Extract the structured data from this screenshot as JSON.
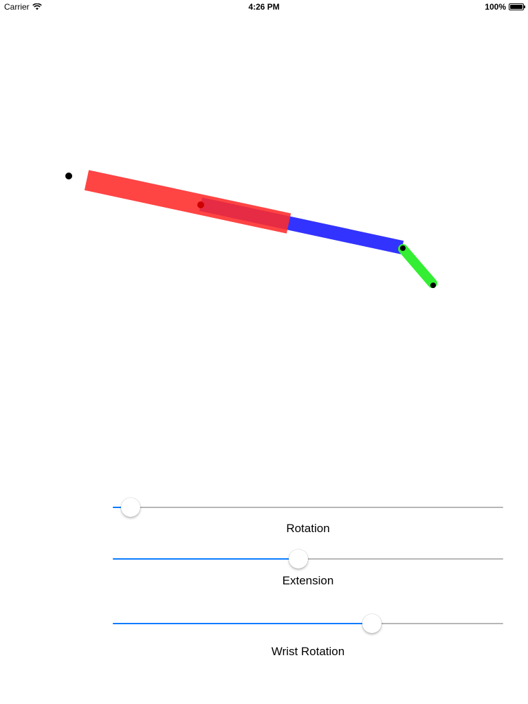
{
  "status_bar": {
    "carrier": "Carrier",
    "time": "4:26 PM",
    "battery": "100%",
    "battery_level": 1.0,
    "icons": [
      "wifi-icon",
      "battery-icon"
    ]
  },
  "arm": {
    "colors": {
      "base_segment": "#ff2a2a",
      "base_segment_opacity": 0.88,
      "extension_segment": "#3333ff",
      "wrist_segment": "#33ee33",
      "joint": "#000000",
      "inner_joint": "#cc0000"
    }
  },
  "controls": {
    "accent_color": "#0a7aff",
    "track_color": "#b6b6b6",
    "sliders": [
      {
        "id": "rotation",
        "label": "Rotation",
        "value": 0.045
      },
      {
        "id": "extension",
        "label": "Extension",
        "value": 0.475
      },
      {
        "id": "wrist",
        "label": "Wrist Rotation",
        "value": 0.663
      }
    ]
  }
}
